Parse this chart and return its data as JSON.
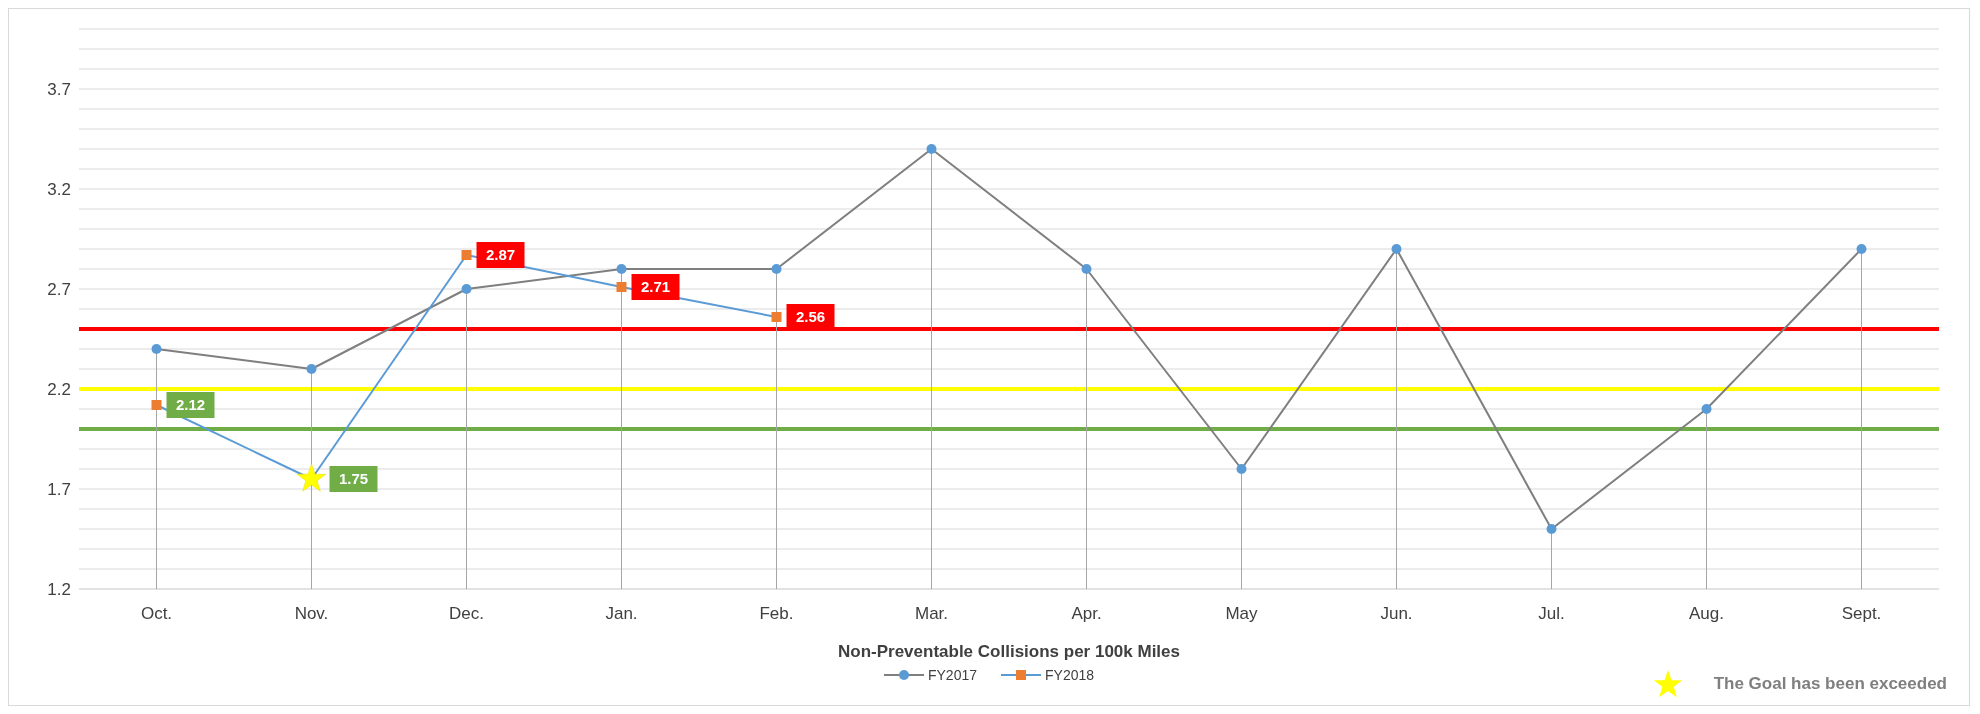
{
  "chart_data": {
    "type": "line",
    "xlabel": "Non-Preventable Collisions per 100k Miles",
    "categories": [
      "Oct.",
      "Nov.",
      "Dec.",
      "Jan.",
      "Feb.",
      "Mar.",
      "Apr.",
      "May",
      "Jun.",
      "Jul.",
      "Aug.",
      "Sept."
    ],
    "series": [
      {
        "name": "FY2017",
        "color": "#7f7f7f",
        "marker": "circle",
        "colors": [
          "#5b9bd5",
          "#5b9bd5",
          "#5b9bd5",
          "#5b9bd5",
          "#5b9bd5",
          "#5b9bd5",
          "#5b9bd5",
          "#5b9bd5",
          "#5b9bd5",
          "#5b9bd5",
          "#5b9bd5",
          "#5b9bd5"
        ],
        "values": [
          2.4,
          2.3,
          2.7,
          2.8,
          2.8,
          3.4,
          2.8,
          1.8,
          2.9,
          1.5,
          2.1,
          2.9
        ],
        "errors": [
          [
            1.2,
            2.4
          ],
          [
            1.2,
            2.3
          ],
          [
            1.2,
            2.7
          ],
          [
            1.2,
            2.8
          ],
          [
            1.2,
            2.8
          ],
          [
            1.2,
            3.4
          ],
          [
            1.2,
            2.8
          ],
          [
            1.2,
            1.8
          ],
          [
            1.2,
            2.9
          ],
          [
            1.2,
            1.5
          ],
          [
            1.2,
            2.1
          ],
          [
            1.2,
            2.9
          ]
        ]
      },
      {
        "name": "FY2018",
        "color": "#5b9bd5",
        "marker": "square",
        "colors": [
          "#ed7d31",
          "#ed7d31",
          "#ed7d31",
          "#ed7d31",
          "#ed7d31",
          null,
          null,
          null,
          null,
          null,
          null,
          null
        ],
        "values": [
          2.12,
          1.75,
          2.87,
          2.71,
          2.56,
          null,
          null,
          null,
          null,
          null,
          null,
          null
        ],
        "value_labels": [
          "2.12",
          "1.75",
          "2.87",
          "2.71",
          "2.56",
          null,
          null,
          null,
          null,
          null,
          null,
          null
        ]
      }
    ],
    "ylim": [
      1.2,
      4.0
    ],
    "yticks": [
      1.2,
      {
        "value": 1.3,
        "label": null
      },
      {
        "value": 1.4,
        "label": null
      },
      {
        "value": 1.5,
        "label": null
      },
      {
        "value": 1.6,
        "label": null
      },
      1.7,
      {
        "value": 1.8,
        "label": null
      },
      {
        "value": 1.9,
        "label": null
      },
      {
        "value": 2.0,
        "label": null
      },
      {
        "value": 2.1,
        "label": null
      },
      2.2,
      {
        "value": 2.3,
        "label": null
      },
      {
        "value": 2.4,
        "label": null
      },
      {
        "value": 2.5,
        "label": null
      },
      {
        "value": 2.6,
        "label": null
      },
      2.7,
      {
        "value": 2.8,
        "label": null
      },
      {
        "value": 2.9,
        "label": null
      },
      {
        "value": 3.0,
        "label": null
      },
      {
        "value": 3.1,
        "label": null
      },
      3.2,
      {
        "value": 3.3,
        "label": null
      },
      {
        "value": 3.4,
        "label": null
      },
      {
        "value": 3.5,
        "label": null
      },
      {
        "value": 3.6,
        "label": null
      },
      3.7,
      {
        "value": 3.8,
        "label": null
      },
      {
        "value": 3.9,
        "label": null
      },
      {
        "value": 4.0,
        "label": null
      }
    ],
    "grid": "y",
    "ref_lines": [
      {
        "axis": "y",
        "value": 2.5,
        "color": "#ff0000"
      },
      {
        "axis": "y",
        "value": 2.2,
        "color": "#ffff00"
      },
      {
        "axis": "y",
        "value": 2.0,
        "color": "#70ad47"
      }
    ],
    "legend": "bottom",
    "annotations": [
      "The Goal has been exceeded"
    ]
  }
}
